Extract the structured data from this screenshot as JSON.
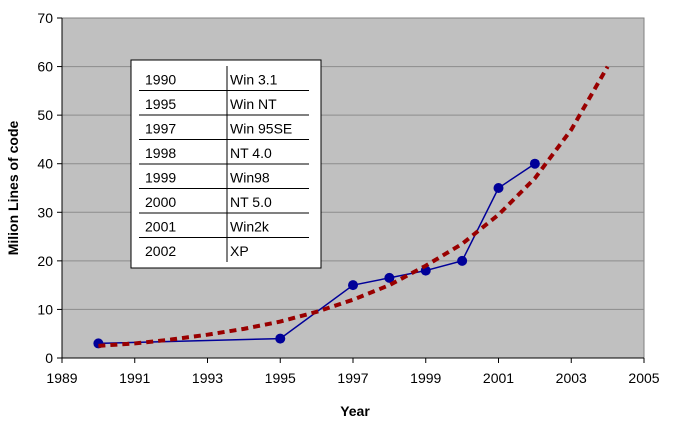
{
  "chart_data": {
    "type": "line",
    "xlabel": "Year",
    "ylabel": "Milion Lines of code",
    "xlim": [
      1989,
      2005
    ],
    "ylim": [
      0,
      70
    ],
    "x_ticks": [
      1989,
      1991,
      1993,
      1995,
      1997,
      1999,
      2001,
      2003,
      2005
    ],
    "y_ticks": [
      0,
      10,
      20,
      30,
      40,
      50,
      60,
      70
    ],
    "grid": "horizontal",
    "plot_background": "#c0c0c0",
    "series": [
      {
        "style": "line-markers",
        "color": "#000099",
        "x": [
          1990,
          1995,
          1997,
          1998,
          1999,
          2000,
          2001,
          2002
        ],
        "y": [
          3,
          4,
          15,
          16.5,
          18,
          20,
          35,
          40
        ]
      },
      {
        "style": "dashed-trend",
        "color": "#990000",
        "x": [
          1990,
          1991,
          1992,
          1993,
          1994,
          1995,
          1996,
          1997,
          1998,
          1999,
          2000,
          2001,
          2002,
          2003,
          2004
        ],
        "y": [
          2.5,
          3,
          3.8,
          4.8,
          6,
          7.5,
          9.5,
          12,
          15,
          19,
          23.5,
          29.5,
          37,
          47,
          60
        ]
      }
    ],
    "table": {
      "rows": [
        [
          "1990",
          "Win 3.1"
        ],
        [
          "1995",
          "Win NT"
        ],
        [
          "1997",
          "Win 95SE"
        ],
        [
          "1998",
          "NT 4.0"
        ],
        [
          "1999",
          "Win98"
        ],
        [
          "2000",
          "NT 5.0"
        ],
        [
          "2001",
          "Win2k"
        ],
        [
          "2002",
          "XP"
        ]
      ]
    }
  }
}
